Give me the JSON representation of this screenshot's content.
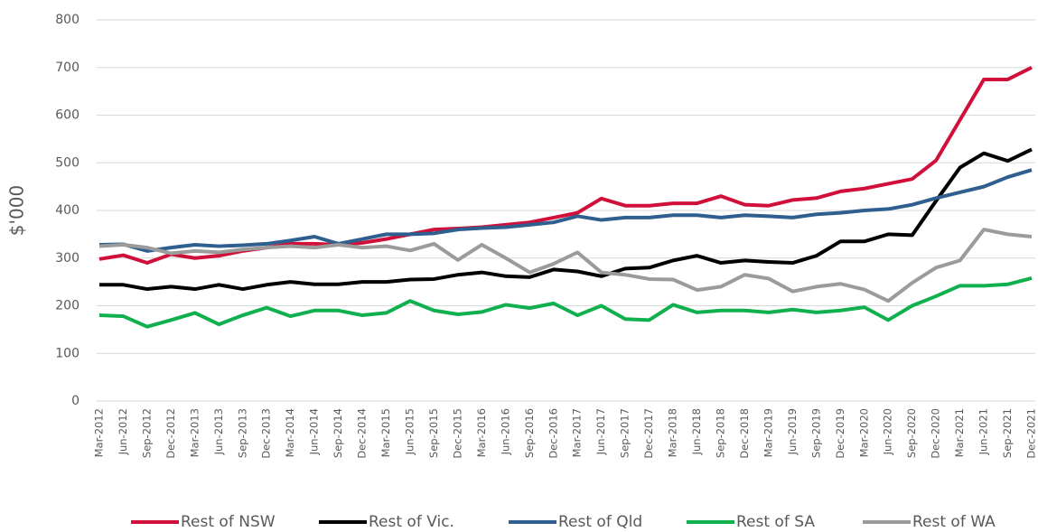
{
  "chart_data": {
    "type": "line",
    "y_label": "$'000",
    "categories": [
      "Mar-2012",
      "Jun-2012",
      "Sep-2012",
      "Dec-2012",
      "Mar-2013",
      "Jun-2013",
      "Sep-2013",
      "Dec-2013",
      "Mar-2014",
      "Jun-2014",
      "Sep-2014",
      "Dec-2014",
      "Mar-2015",
      "Jun-2015",
      "Sep-2015",
      "Dec-2015",
      "Mar-2016",
      "Jun-2016",
      "Sep-2016",
      "Dec-2016",
      "Mar-2017",
      "Jun-2017",
      "Sep-2017",
      "Dec-2017",
      "Mar-2018",
      "Jun-2018",
      "Sep-2018",
      "Dec-2018",
      "Mar-2019",
      "Jun-2019",
      "Sep-2019",
      "Dec-2019",
      "Mar-2020",
      "Jun-2020",
      "Sep-2020",
      "Dec-2020",
      "Mar-2021",
      "Jun-2021",
      "Sep-2021",
      "Dec-2021"
    ],
    "series": [
      {
        "name": "Rest of NSW",
        "color": "#d0103a",
        "values": [
          298,
          306,
          290,
          308,
          300,
          305,
          315,
          322,
          330,
          330,
          328,
          332,
          340,
          350,
          360,
          362,
          365,
          370,
          375,
          385,
          395,
          425,
          410,
          410,
          415,
          415,
          430,
          412,
          410,
          422,
          426,
          440,
          446,
          456,
          466,
          505,
          590,
          675,
          675,
          700
        ]
      },
      {
        "name": "Rest of Vic.",
        "color": "#000000",
        "values": [
          244,
          244,
          235,
          240,
          235,
          244,
          235,
          244,
          250,
          245,
          245,
          250,
          250,
          255,
          256,
          265,
          270,
          262,
          260,
          276,
          272,
          262,
          278,
          280,
          295,
          305,
          290,
          295,
          292,
          290,
          305,
          335,
          335,
          350,
          348,
          420,
          490,
          520,
          504,
          528
        ]
      },
      {
        "name": "Rest of Qld",
        "color": "#2e5f8f",
        "values": [
          328,
          329,
          315,
          322,
          328,
          325,
          327,
          330,
          337,
          345,
          330,
          340,
          350,
          350,
          352,
          360,
          363,
          365,
          370,
          375,
          388,
          380,
          385,
          385,
          390,
          390,
          385,
          390,
          388,
          385,
          392,
          395,
          400,
          403,
          412,
          426,
          438,
          450,
          470,
          485
        ]
      },
      {
        "name": "Rest of SA",
        "color": "#10b04f",
        "values": [
          180,
          178,
          156,
          170,
          185,
          161,
          180,
          196,
          178,
          190,
          190,
          180,
          185,
          210,
          190,
          182,
          187,
          202,
          195,
          205,
          180,
          200,
          172,
          170,
          202,
          186,
          190,
          190,
          186,
          192,
          186,
          190,
          197,
          170,
          200,
          220,
          242,
          242,
          245,
          258
        ]
      },
      {
        "name": "Rest of WA",
        "color": "#9b9b9b",
        "values": [
          325,
          328,
          322,
          310,
          315,
          312,
          318,
          322,
          325,
          322,
          328,
          322,
          325,
          316,
          330,
          296,
          328,
          300,
          270,
          288,
          312,
          270,
          265,
          256,
          255,
          233,
          240,
          265,
          257,
          230,
          240,
          246,
          234,
          210,
          248,
          280,
          295,
          360,
          350,
          345
        ]
      }
    ],
    "ylim": [
      0,
      800
    ],
    "yticks": [
      0,
      100,
      200,
      300,
      400,
      500,
      600,
      700,
      800
    ],
    "grid": true,
    "legend": "bottom"
  }
}
